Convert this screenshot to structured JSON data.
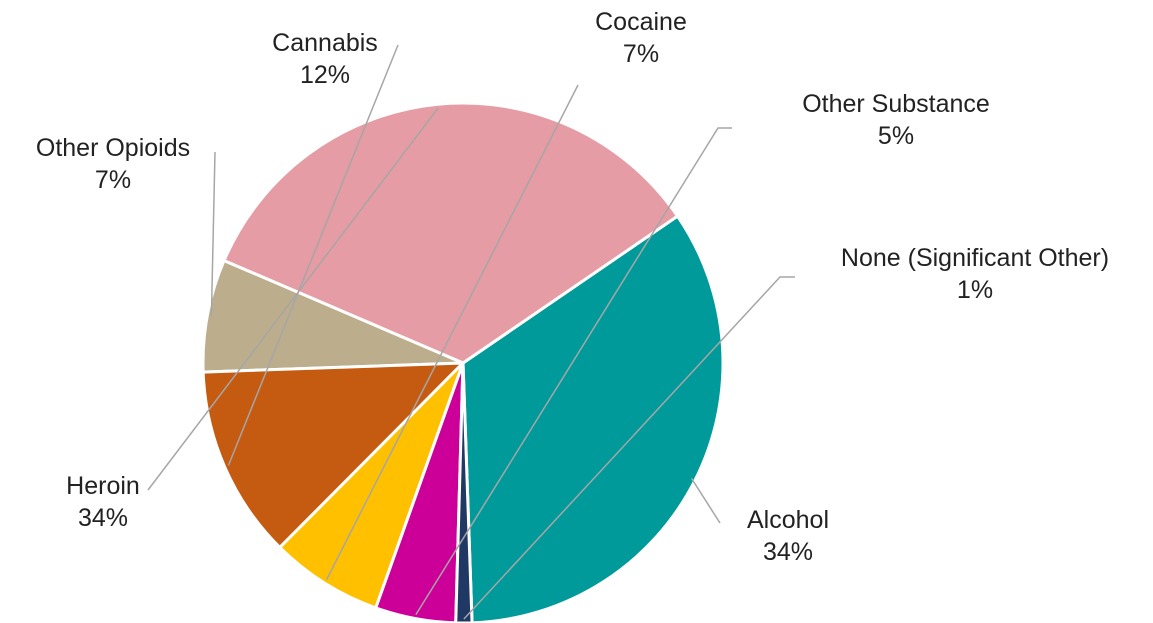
{
  "chart_data": {
    "type": "pie",
    "title": "",
    "legend": "none",
    "slices": [
      {
        "label": "Alcohol",
        "value": 34,
        "value_label": "34%",
        "color": "#009a9a"
      },
      {
        "label": "Heroin",
        "value": 34,
        "value_label": "34%",
        "color": "#e69ca4"
      },
      {
        "label": "Other Opioids",
        "value": 7,
        "value_label": "7%",
        "color": "#bcae8d"
      },
      {
        "label": "Cannabis",
        "value": 12,
        "value_label": "12%",
        "color": "#c55a11"
      },
      {
        "label": "Cocaine",
        "value": 7,
        "value_label": "7%",
        "color": "#ffc000"
      },
      {
        "label": "Other Substance",
        "value": 5,
        "value_label": "5%",
        "color": "#cc0099"
      },
      {
        "label": "None (Significant Other)",
        "value": 1,
        "value_label": "1%",
        "color": "#1f3864"
      }
    ]
  }
}
